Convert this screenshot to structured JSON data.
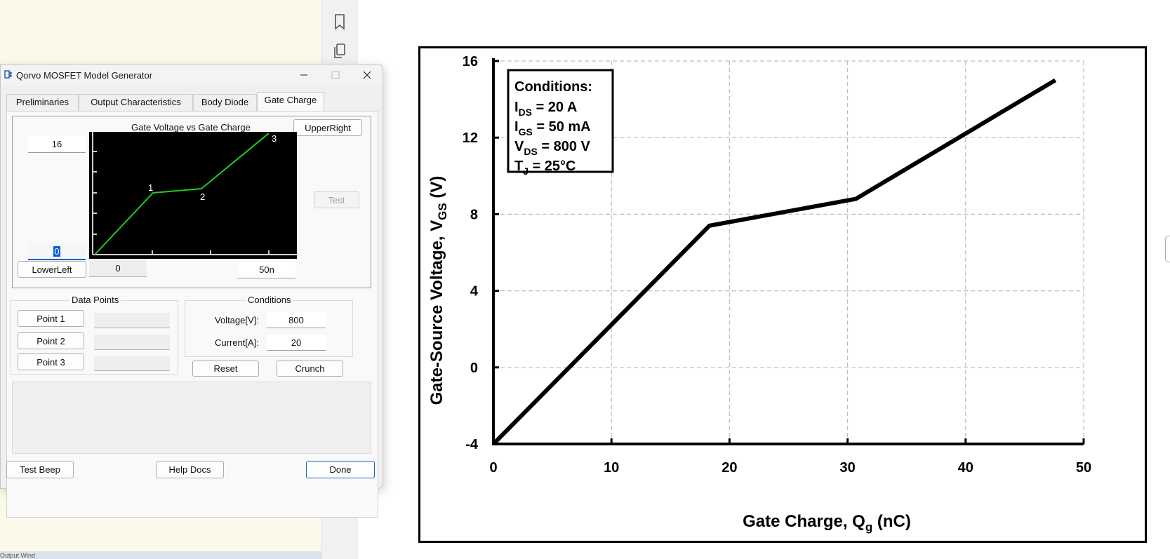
{
  "dialog": {
    "title": "Qorvo MOSFET Model Generator",
    "tabs": [
      {
        "label": "Preliminaries"
      },
      {
        "label": "Output Characteristics"
      },
      {
        "label": "Body Diode"
      },
      {
        "label": "Gate Charge",
        "active": true
      }
    ],
    "mini_chart": {
      "title": "Gate Voltage vs Gate Charge",
      "upper_right_label": "UpperRight",
      "lower_left_label": "LowerLeft",
      "y_max_value": "16",
      "y_min_value": "0",
      "x_min_value": "0",
      "x_max_value": "50n",
      "test_label": "Test",
      "point_labels": [
        "1",
        "2",
        "3"
      ],
      "line_color": "#1fcc1f",
      "background": "#000000"
    },
    "data_points": {
      "title": "Data Points",
      "buttons": [
        {
          "label": "Point 1",
          "value": ""
        },
        {
          "label": "Point 2",
          "value": ""
        },
        {
          "label": "Point 3",
          "value": ""
        }
      ]
    },
    "conditions": {
      "title": "Conditions",
      "voltage_label": "Voltage[V]:",
      "voltage_value": "800",
      "current_label": "Current[A]:",
      "current_value": "20"
    },
    "reset_label": "Reset",
    "crunch_label": "Crunch",
    "footer": {
      "test_beep_label": "Test Beep",
      "help_docs_label": "Help Docs",
      "done_label": "Done"
    }
  },
  "background": {
    "status_text": "Output Wind"
  },
  "chart_data": {
    "type": "line",
    "title": "",
    "xlabel": "Gate Charge, Q",
    "xlabel_sub": "g",
    "xlabel_unit": "(nC)",
    "ylabel": "Gate-Source Voltage, V",
    "ylabel_sub": "GS",
    "ylabel_unit": "(V)",
    "xlim": [
      0,
      50
    ],
    "ylim": [
      -4,
      16
    ],
    "x_ticks": [
      "0",
      "10",
      "20",
      "30",
      "40",
      "50"
    ],
    "y_ticks": [
      "-4",
      "0",
      "4",
      "8",
      "12",
      "16"
    ],
    "grid": true,
    "series": [
      {
        "x": [
          0,
          18.3,
          30.7,
          47.6
        ],
        "y": [
          -4,
          7.4,
          8.8,
          15.0
        ]
      }
    ],
    "annotation": {
      "heading": "Conditions:",
      "lines": [
        {
          "main": "I",
          "sub": "DS",
          "rest": " = 20 A"
        },
        {
          "main": "I",
          "sub": "GS",
          "rest": " = 50 mA"
        },
        {
          "main": "V",
          "sub": "DS",
          "rest": " = 800 V"
        },
        {
          "main": "T",
          "sub": "J",
          "rest": " = 25°C"
        }
      ]
    }
  }
}
